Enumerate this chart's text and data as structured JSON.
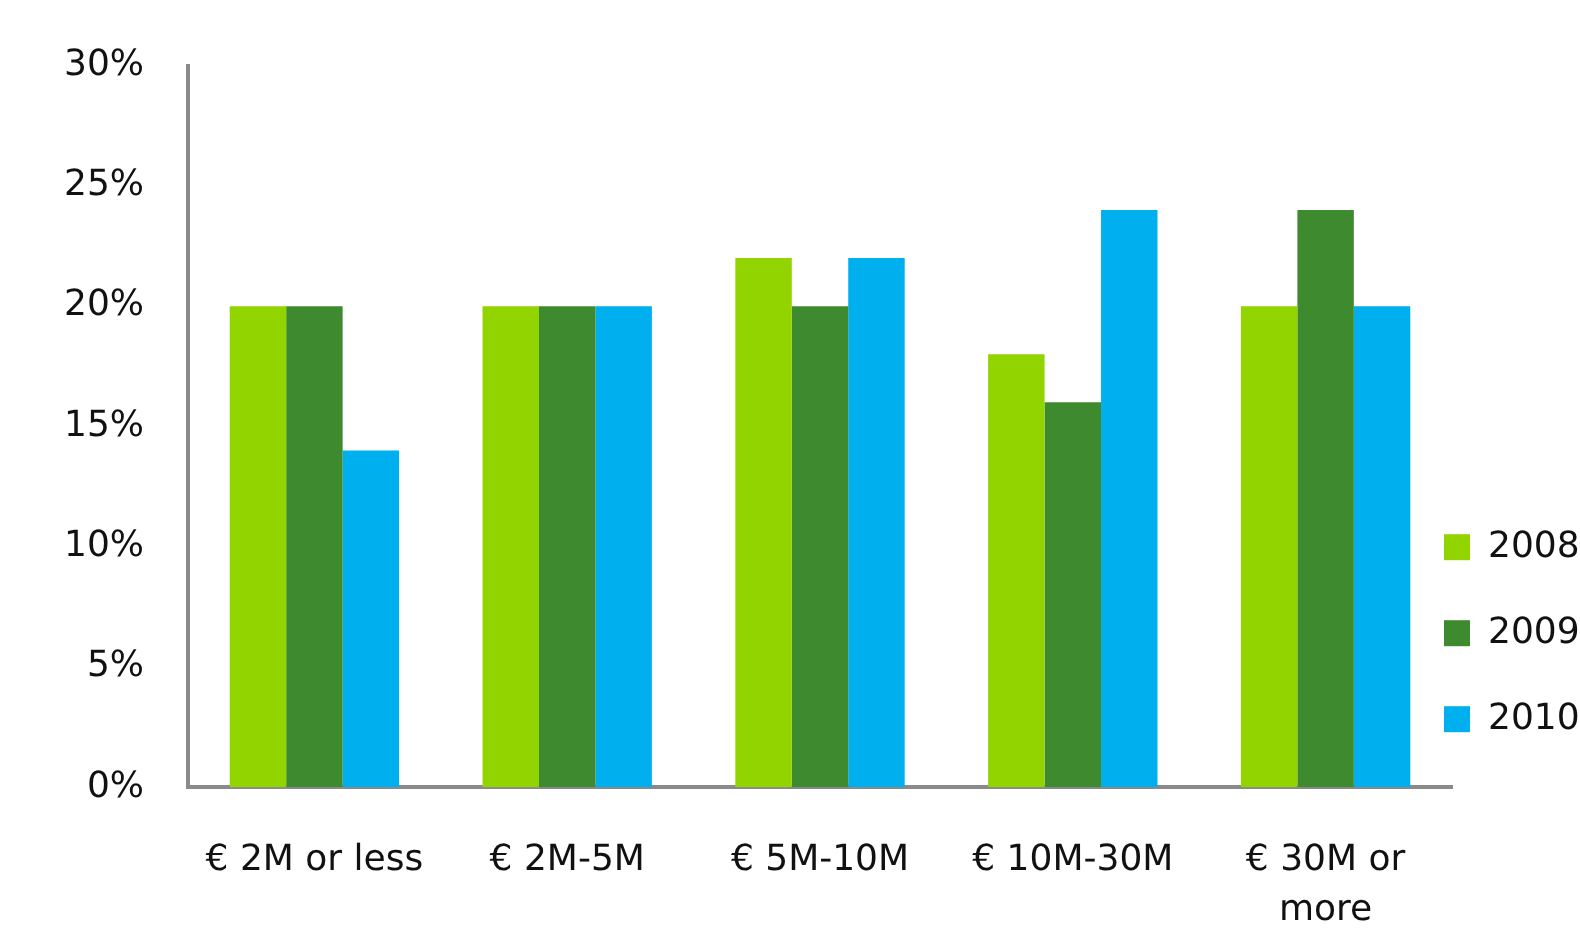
{
  "chart_data": {
    "type": "bar",
    "categories": [
      "€ 2M or less",
      "€ 2M-5M",
      "€ 5M-10M",
      "€ 10M-30M",
      "€ 30M or more"
    ],
    "series": [
      {
        "name": "2008",
        "color": "#92d400",
        "values": [
          20,
          20,
          22,
          18,
          20
        ]
      },
      {
        "name": "2009",
        "color": "#3d8a2f",
        "values": [
          20,
          20,
          20,
          16,
          24
        ]
      },
      {
        "name": "2010",
        "color": "#00afed",
        "values": [
          14,
          20,
          22,
          24,
          20
        ]
      }
    ],
    "ylim": [
      0,
      30
    ],
    "yticks": [
      {
        "value": 0,
        "label": "0%"
      },
      {
        "value": 5,
        "label": "5%"
      },
      {
        "value": 10,
        "label": "10%"
      },
      {
        "value": 15,
        "label": "15%"
      },
      {
        "value": 20,
        "label": "20%"
      },
      {
        "value": 25,
        "label": "25%"
      },
      {
        "value": 30,
        "label": "30%"
      }
    ],
    "grid": false,
    "legend": "right"
  }
}
